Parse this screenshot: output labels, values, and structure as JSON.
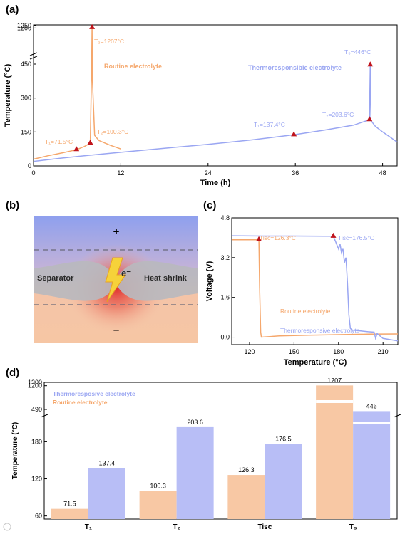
{
  "colors": {
    "routine": "#F5A76C",
    "thermo": "#9AA6F2",
    "marker": "#C0141C",
    "bar_routine": "#F8C8A4",
    "bar_thermo": "#B8BEF6"
  },
  "panel_a": {
    "label": "(a)",
    "xlabel": "Time (h)",
    "ylabel": "Temperature (°C)",
    "x_ticks": [
      "0",
      "12",
      "24",
      "36",
      "48"
    ],
    "y_ticks": [
      "0",
      "150",
      "300",
      "450",
      "1200",
      "1250"
    ],
    "routine_label": "Routine electrolyte",
    "thermo_label": "Thermoresponsible electrolyte",
    "ann_routine": [
      "T₁=71.5°C",
      "T₂=100.3°C",
      "T₃=1207°C"
    ],
    "ann_thermo": [
      "T₁=137.4°C",
      "T₂=203.6°C",
      "T₃=446°C"
    ]
  },
  "panel_b": {
    "label": "(b)",
    "plus": "+",
    "minus": "–",
    "separator": "Separator",
    "heat_shrink": "Heat shrink",
    "electron": "e⁻"
  },
  "panel_c": {
    "label": "(c)",
    "xlabel": "Temperature (°C)",
    "ylabel": "Voltage (V)",
    "x_ticks": [
      "120",
      "150",
      "180",
      "210"
    ],
    "y_ticks": [
      "0.0",
      "1.6",
      "3.2",
      "4.8"
    ],
    "routine_label": "Routine electrolyte",
    "thermo_label": "Thermoresponsive electrolyte",
    "ann_routine": "Tisc=126.3°C",
    "ann_thermo": "Tisc=176.5°C"
  },
  "panel_d": {
    "label": "(d)",
    "ylabel": "Temperature (°C)",
    "y_ticks": [
      "60",
      "120",
      "180",
      "490",
      "1200",
      "1300"
    ],
    "legend_thermo": "Thermoresposive electrolyte",
    "legend_routine": "Routine electrolyte"
  },
  "chart_data": [
    {
      "type": "line",
      "title": "(a)",
      "xlabel": "Time (h)",
      "ylabel": "Temperature (°C)",
      "xlim": [
        0,
        50
      ],
      "ylim": [
        0,
        1250
      ],
      "y_axis_break": [
        450,
        1200
      ],
      "series": [
        {
          "name": "Routine electrolyte",
          "x": [
            0,
            2,
            4,
            5.9,
            7.0,
            7.8,
            8.0,
            8.05,
            8.1,
            8.4,
            9,
            10.5,
            12
          ],
          "y": [
            30,
            45,
            58,
            71.5,
            86,
            100.3,
            500,
            1207,
            380,
            135,
            112,
            92,
            75
          ]
        },
        {
          "name": "Thermoresponsible electrolyte",
          "x": [
            0,
            4,
            8,
            12,
            18,
            24,
            30,
            35.8,
            40,
            44,
            46.2,
            46.3,
            46.4,
            47,
            48,
            49,
            50
          ],
          "y": [
            20,
            35,
            48,
            60,
            78,
            95,
            115,
            137.4,
            158,
            180,
            203.6,
            446,
            200,
            175,
            150,
            128,
            105
          ]
        }
      ],
      "markers": [
        {
          "series": "Routine electrolyte",
          "x": 5.9,
          "y": 71.5,
          "label": "T₁=71.5°C"
        },
        {
          "series": "Routine electrolyte",
          "x": 7.8,
          "y": 100.3,
          "label": "T₂=100.3°C"
        },
        {
          "series": "Routine electrolyte",
          "x": 8.05,
          "y": 1207,
          "label": "T₃=1207°C"
        },
        {
          "series": "Thermoresponsible electrolyte",
          "x": 35.8,
          "y": 137.4,
          "label": "T₁=137.4°C"
        },
        {
          "series": "Thermoresponsible electrolyte",
          "x": 46.2,
          "y": 203.6,
          "label": "T₂=203.6°C"
        },
        {
          "series": "Thermoresponsible electrolyte",
          "x": 46.3,
          "y": 446,
          "label": "T₃=446°C"
        }
      ]
    },
    {
      "type": "line",
      "title": "(c)",
      "xlabel": "Temperature (°C)",
      "ylabel": "Voltage (V)",
      "xlim": [
        108,
        220
      ],
      "ylim": [
        -0.3,
        4.8
      ],
      "series": [
        {
          "name": "Routine electrolyte",
          "x": [
            108,
            120,
            126.3,
            126.8,
            127.5,
            128,
            140,
            160,
            180,
            200,
            220
          ],
          "y": [
            3.92,
            3.92,
            3.92,
            2.0,
            0.2,
            0.0,
            0.05,
            0.08,
            0.1,
            0.12,
            0.13
          ]
        },
        {
          "name": "Thermoresponsive electrolyte",
          "x": [
            108,
            130,
            150,
            170,
            176.5,
            178,
            180,
            181,
            182,
            183,
            184,
            185,
            186,
            187,
            188,
            189,
            190,
            195,
            200,
            204,
            205,
            206,
            210,
            215,
            220
          ],
          "y": [
            4.08,
            4.07,
            4.07,
            4.06,
            4.06,
            3.85,
            3.55,
            3.75,
            3.4,
            3.55,
            3.0,
            3.2,
            2.2,
            0.9,
            0.35,
            0.3,
            0.28,
            0.25,
            0.22,
            0.2,
            -0.05,
            0.15,
            -0.05,
            -0.1,
            -0.15
          ]
        }
      ],
      "markers": [
        {
          "series": "Routine electrolyte",
          "x": 126.3,
          "y": 3.92,
          "label": "Tisc=126.3°C"
        },
        {
          "series": "Thermoresponsive electrolyte",
          "x": 176.5,
          "y": 4.06,
          "label": "Tisc=176.5°C"
        }
      ]
    },
    {
      "type": "bar",
      "title": "(d)",
      "ylabel": "Temperature (°C)",
      "categories": [
        "T₁",
        "T₂",
        "Tisc",
        "T₃"
      ],
      "ylim": [
        55,
        1300
      ],
      "y_axis_break": [
        215,
        490
      ],
      "series": [
        {
          "name": "Routine electrolyte",
          "values": [
            71.5,
            100.3,
            126.3,
            1207
          ]
        },
        {
          "name": "Thermoresposive electrolyte",
          "values": [
            137.4,
            203.6,
            176.5,
            446
          ]
        }
      ],
      "value_labels": {
        "Routine electrolyte": [
          "71.5",
          "100.3",
          "126.3",
          "1207"
        ],
        "Thermoresposive electrolyte": [
          "137.4",
          "203.6",
          "176.5",
          "446"
        ]
      }
    }
  ]
}
